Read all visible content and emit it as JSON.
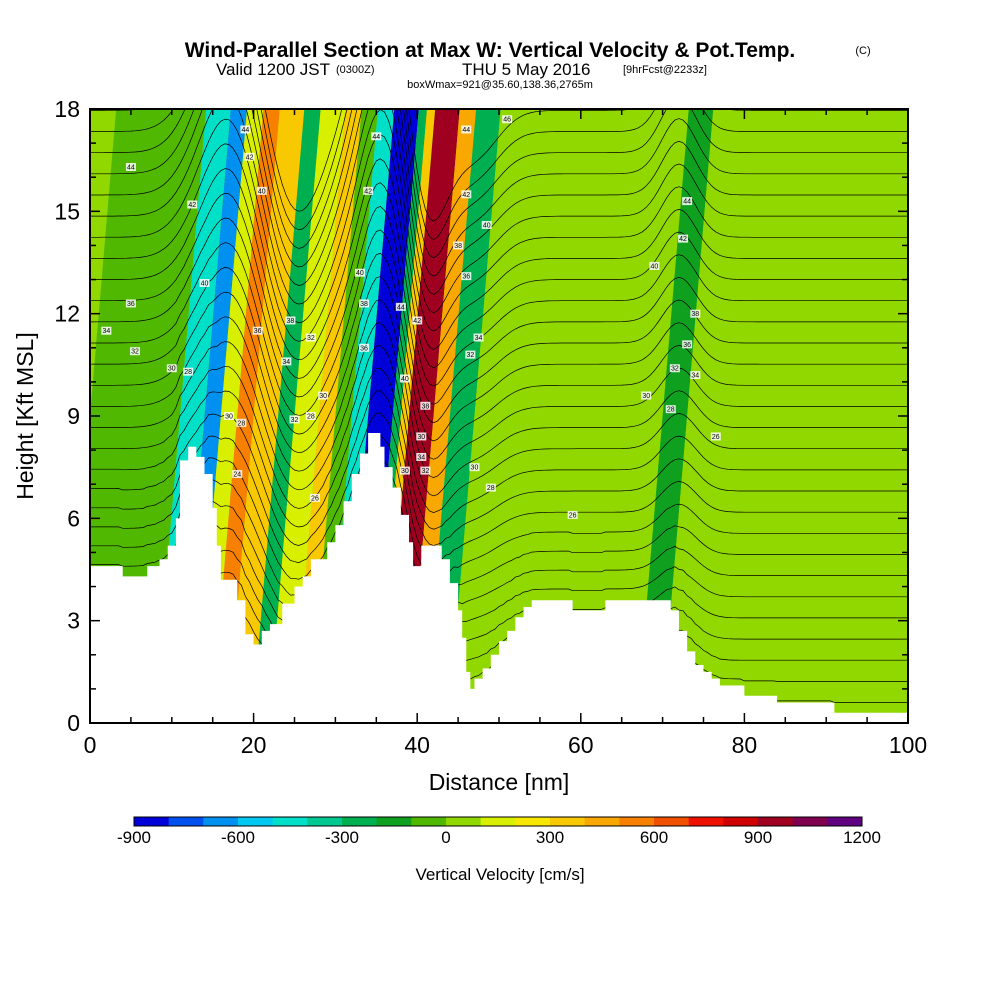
{
  "title": {
    "main": "Wind-Parallel Section at Max W: Vertical Velocity & Pot.Temp.",
    "copyright": "(C)",
    "valid_prefix": "Valid 1200 JST",
    "valid_utc": "(0300Z)",
    "valid_date": "THU 5 May 2016",
    "forecast": "[9hrFcst@2233z]",
    "box_info": "boxWmax=921@35.60,138.36,2765m"
  },
  "chart_data": {
    "type": "heatmap",
    "xlabel": "Distance [nm]",
    "ylabel": "Height [Kft MSL]",
    "xlim": [
      0,
      100
    ],
    "ylim": [
      0,
      18
    ],
    "x_ticks": [
      "0",
      "20",
      "40",
      "60",
      "80",
      "100"
    ],
    "y_ticks": [
      "0",
      "3",
      "6",
      "9",
      "12",
      "15",
      "18"
    ],
    "colorbar": {
      "title": "Vertical Velocity [cm/s]",
      "labels": [
        "-900",
        "-600",
        "-300",
        "0",
        "300",
        "600",
        "900",
        "1200"
      ],
      "colors": [
        "#0000d8",
        "#0050f0",
        "#0090f0",
        "#00c8f0",
        "#00e0c8",
        "#00c890",
        "#00b050",
        "#10a020",
        "#50b800",
        "#90d800",
        "#d8f000",
        "#f8e800",
        "#f8c800",
        "#f8a800",
        "#f88000",
        "#f05000",
        "#f01000",
        "#d00000",
        "#a00020",
        "#800050",
        "#600080"
      ]
    },
    "terrain_profile": [
      [
        0,
        4.6
      ],
      [
        4,
        4.6
      ],
      [
        4,
        4.3
      ],
      [
        7,
        4.3
      ],
      [
        7,
        4.6
      ],
      [
        8.5,
        4.6
      ],
      [
        8.5,
        4.8
      ],
      [
        9.5,
        4.8
      ],
      [
        9.5,
        5.2
      ],
      [
        10.5,
        5.2
      ],
      [
        10.5,
        6
      ],
      [
        11,
        6
      ],
      [
        11,
        7.7
      ],
      [
        12,
        7.7
      ],
      [
        12,
        8.1
      ],
      [
        13,
        8.1
      ],
      [
        13,
        7.8
      ],
      [
        14,
        7.8
      ],
      [
        14,
        7.3
      ],
      [
        15,
        7.3
      ],
      [
        15,
        6.3
      ],
      [
        15.5,
        6.3
      ],
      [
        15.5,
        5.2
      ],
      [
        16,
        5.2
      ],
      [
        16,
        4.2
      ],
      [
        18,
        4.2
      ],
      [
        18,
        3.6
      ],
      [
        19,
        3.6
      ],
      [
        19,
        2.6
      ],
      [
        20,
        2.6
      ],
      [
        20,
        2.3
      ],
      [
        21,
        2.3
      ],
      [
        21,
        2.7
      ],
      [
        22,
        2.7
      ],
      [
        22,
        2.9
      ],
      [
        23.5,
        2.9
      ],
      [
        23.5,
        3.5
      ],
      [
        25,
        3.5
      ],
      [
        25,
        4.0
      ],
      [
        26,
        4.0
      ],
      [
        26,
        4.3
      ],
      [
        27,
        4.3
      ],
      [
        27,
        4.8
      ],
      [
        29,
        4.8
      ],
      [
        29,
        5.3
      ],
      [
        30,
        5.3
      ],
      [
        30,
        5.8
      ],
      [
        31,
        5.8
      ],
      [
        31,
        6.5
      ],
      [
        32,
        6.5
      ],
      [
        32,
        7.3
      ],
      [
        33,
        7.3
      ],
      [
        33,
        7.9
      ],
      [
        34,
        7.9
      ],
      [
        34,
        8.5
      ],
      [
        35.5,
        8.5
      ],
      [
        35.5,
        8.1
      ],
      [
        36,
        8.1
      ],
      [
        36,
        7.5
      ],
      [
        37,
        7.5
      ],
      [
        37,
        6.9
      ],
      [
        38,
        6.9
      ],
      [
        38,
        6.1
      ],
      [
        39,
        6.1
      ],
      [
        39,
        5.3
      ],
      [
        39.5,
        5.3
      ],
      [
        39.5,
        4.6
      ],
      [
        40.5,
        4.6
      ],
      [
        40.5,
        5.2
      ],
      [
        43,
        5.2
      ],
      [
        43,
        4.8
      ],
      [
        44,
        4.8
      ],
      [
        44,
        4.1
      ],
      [
        45,
        4.1
      ],
      [
        45,
        3.3
      ],
      [
        45.5,
        3.3
      ],
      [
        45.5,
        2.5
      ],
      [
        46,
        2.5
      ],
      [
        46,
        1.5
      ],
      [
        46.5,
        1.5
      ],
      [
        46.5,
        1.0
      ],
      [
        47,
        1.0
      ],
      [
        47,
        1.3
      ],
      [
        48,
        1.3
      ],
      [
        48,
        1.6
      ],
      [
        49,
        1.6
      ],
      [
        49,
        2.0
      ],
      [
        50,
        2.0
      ],
      [
        50,
        2.4
      ],
      [
        51,
        2.4
      ],
      [
        51,
        2.7
      ],
      [
        52,
        2.7
      ],
      [
        52,
        3.1
      ],
      [
        53,
        3.1
      ],
      [
        53,
        3.4
      ],
      [
        54,
        3.4
      ],
      [
        54,
        3.6
      ],
      [
        59,
        3.6
      ],
      [
        59,
        3.3
      ],
      [
        63,
        3.3
      ],
      [
        63,
        3.6
      ],
      [
        71,
        3.6
      ],
      [
        71,
        3.3
      ],
      [
        72,
        3.3
      ],
      [
        72,
        2.7
      ],
      [
        73,
        2.7
      ],
      [
        73,
        2.1
      ],
      [
        74,
        2.1
      ],
      [
        74,
        1.7
      ],
      [
        75,
        1.7
      ],
      [
        75,
        1.5
      ],
      [
        76,
        1.5
      ],
      [
        76,
        1.3
      ],
      [
        77,
        1.3
      ],
      [
        77,
        1.1
      ],
      [
        80,
        1.1
      ],
      [
        80,
        0.8
      ],
      [
        84,
        0.8
      ],
      [
        84,
        0.6
      ],
      [
        91,
        0.6
      ],
      [
        91,
        0.3
      ],
      [
        100,
        0.3
      ]
    ],
    "vv_bands": [
      {
        "x0": 0,
        "x1": 11,
        "value": -100
      },
      {
        "x0": 11,
        "x1": 14,
        "value": -500
      },
      {
        "x0": 14,
        "x1": 16,
        "value": -700
      },
      {
        "x0": 16,
        "x1": 18,
        "value": 100
      },
      {
        "x0": 18,
        "x1": 20,
        "value": 500
      },
      {
        "x0": 20,
        "x1": 23,
        "value": 300
      },
      {
        "x0": 23,
        "x1": 25,
        "value": -300
      },
      {
        "x0": 25,
        "x1": 28,
        "value": 100
      },
      {
        "x0": 28,
        "x1": 30,
        "value": 300
      },
      {
        "x0": 30,
        "x1": 32,
        "value": -100
      },
      {
        "x0": 32,
        "x1": 34,
        "value": -500
      },
      {
        "x0": 34,
        "x1": 37,
        "value": -900
      },
      {
        "x0": 37,
        "x1": 38,
        "value": -300
      },
      {
        "x0": 38,
        "x1": 39,
        "value": 300
      },
      {
        "x0": 39,
        "x1": 42,
        "value": 900
      },
      {
        "x0": 42,
        "x1": 44,
        "value": 400
      },
      {
        "x0": 44,
        "x1": 47,
        "value": -300
      },
      {
        "x0": 47,
        "x1": 52,
        "value": 0
      },
      {
        "x0": 52,
        "x1": 70,
        "value": 0
      },
      {
        "x0": 70,
        "x1": 73,
        "value": -200
      },
      {
        "x0": 73,
        "x1": 100,
        "value": 0
      }
    ],
    "theta_labels": [
      {
        "x": 5,
        "y": 16.3,
        "text": "44"
      },
      {
        "x": 5,
        "y": 12.3,
        "text": "36"
      },
      {
        "x": 2,
        "y": 11.5,
        "text": "34"
      },
      {
        "x": 5.5,
        "y": 10.9,
        "text": "32"
      },
      {
        "x": 10,
        "y": 10.4,
        "text": "30"
      },
      {
        "x": 12,
        "y": 10.3,
        "text": "28"
      },
      {
        "x": 12.5,
        "y": 15.2,
        "text": "42"
      },
      {
        "x": 14,
        "y": 12.9,
        "text": "40"
      },
      {
        "x": 19,
        "y": 17.4,
        "text": "44"
      },
      {
        "x": 19.5,
        "y": 16.6,
        "text": "42"
      },
      {
        "x": 21,
        "y": 15.6,
        "text": "40"
      },
      {
        "x": 24.5,
        "y": 11.8,
        "text": "38"
      },
      {
        "x": 20.5,
        "y": 11.5,
        "text": "36"
      },
      {
        "x": 24,
        "y": 10.6,
        "text": "34"
      },
      {
        "x": 27,
        "y": 11.3,
        "text": "32"
      },
      {
        "x": 28.5,
        "y": 9.6,
        "text": "30"
      },
      {
        "x": 27,
        "y": 9.0,
        "text": "28"
      },
      {
        "x": 25,
        "y": 8.9,
        "text": "32"
      },
      {
        "x": 17,
        "y": 9.0,
        "text": "30"
      },
      {
        "x": 18.5,
        "y": 8.8,
        "text": "28"
      },
      {
        "x": 18,
        "y": 7.3,
        "text": "24"
      },
      {
        "x": 27.5,
        "y": 6.6,
        "text": "26"
      },
      {
        "x": 35,
        "y": 17.2,
        "text": "44"
      },
      {
        "x": 34,
        "y": 15.6,
        "text": "42"
      },
      {
        "x": 33,
        "y": 13.2,
        "text": "40"
      },
      {
        "x": 33.5,
        "y": 12.3,
        "text": "38"
      },
      {
        "x": 33.5,
        "y": 11.0,
        "text": "36"
      },
      {
        "x": 38,
        "y": 12.2,
        "text": "44"
      },
      {
        "x": 40,
        "y": 11.8,
        "text": "42"
      },
      {
        "x": 38.5,
        "y": 10.1,
        "text": "40"
      },
      {
        "x": 41,
        "y": 9.3,
        "text": "38"
      },
      {
        "x": 40.5,
        "y": 8.4,
        "text": "30"
      },
      {
        "x": 40.5,
        "y": 7.8,
        "text": "34"
      },
      {
        "x": 41,
        "y": 7.4,
        "text": "32"
      },
      {
        "x": 38.5,
        "y": 7.4,
        "text": "30"
      },
      {
        "x": 46,
        "y": 17.4,
        "text": "44"
      },
      {
        "x": 51,
        "y": 17.7,
        "text": "46"
      },
      {
        "x": 46,
        "y": 15.5,
        "text": "42"
      },
      {
        "x": 48.5,
        "y": 14.6,
        "text": "40"
      },
      {
        "x": 45,
        "y": 14.0,
        "text": "38"
      },
      {
        "x": 46,
        "y": 13.1,
        "text": "36"
      },
      {
        "x": 47.5,
        "y": 11.3,
        "text": "34"
      },
      {
        "x": 46.5,
        "y": 10.8,
        "text": "32"
      },
      {
        "x": 47,
        "y": 7.5,
        "text": "30"
      },
      {
        "x": 49,
        "y": 6.9,
        "text": "28"
      },
      {
        "x": 59,
        "y": 6.1,
        "text": "26"
      },
      {
        "x": 73,
        "y": 15.3,
        "text": "44"
      },
      {
        "x": 72.5,
        "y": 14.2,
        "text": "42"
      },
      {
        "x": 69,
        "y": 13.4,
        "text": "40"
      },
      {
        "x": 74,
        "y": 12.0,
        "text": "38"
      },
      {
        "x": 73,
        "y": 11.1,
        "text": "36"
      },
      {
        "x": 71.5,
        "y": 10.4,
        "text": "32"
      },
      {
        "x": 74,
        "y": 10.2,
        "text": "34"
      },
      {
        "x": 68,
        "y": 9.6,
        "text": "30"
      },
      {
        "x": 71,
        "y": 9.2,
        "text": "28"
      },
      {
        "x": 76.5,
        "y": 8.4,
        "text": "26"
      }
    ]
  }
}
